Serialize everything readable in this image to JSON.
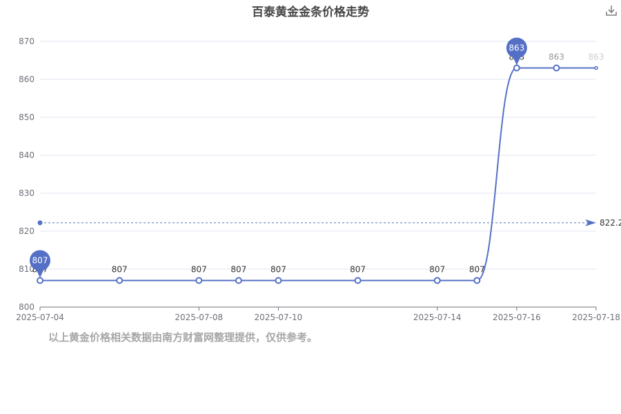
{
  "page": {
    "title": "百泰黄金金条价格走势",
    "footnote": "以上黄金价格相关数据由南方财富网整理提供，仅供参考。",
    "download_icon": "download-icon"
  },
  "chart_data": {
    "type": "line",
    "title": "百泰黄金金条价格走势",
    "x": [
      "2025-07-04",
      "2025-07-06",
      "2025-07-08",
      "2025-07-09",
      "2025-07-10",
      "2025-07-12",
      "2025-07-14",
      "2025-07-15",
      "2025-07-16",
      "2025-07-17",
      "2025-07-18"
    ],
    "xtick_labels": [
      "2025-07-04",
      "2025-07-08",
      "2025-07-10",
      "2025-07-14",
      "2025-07-16",
      "2025-07-18"
    ],
    "series": [
      {
        "values": [
          807,
          807,
          807,
          807,
          807,
          807,
          807,
          807,
          863,
          863,
          863
        ]
      }
    ],
    "data_labels": [
      "807",
      "807",
      "807",
      "807",
      "807",
      "807",
      "807",
      "807",
      "863",
      "863",
      "863"
    ],
    "markers": {
      "min": "807",
      "max": "863"
    },
    "average_line": {
      "value": 822.2,
      "label": "822.2"
    },
    "ylim": [
      800,
      870
    ],
    "yticks": [
      800,
      810,
      820,
      830,
      840,
      850,
      860,
      870
    ],
    "grid": true,
    "smooth": true,
    "color": "#5470c6"
  }
}
